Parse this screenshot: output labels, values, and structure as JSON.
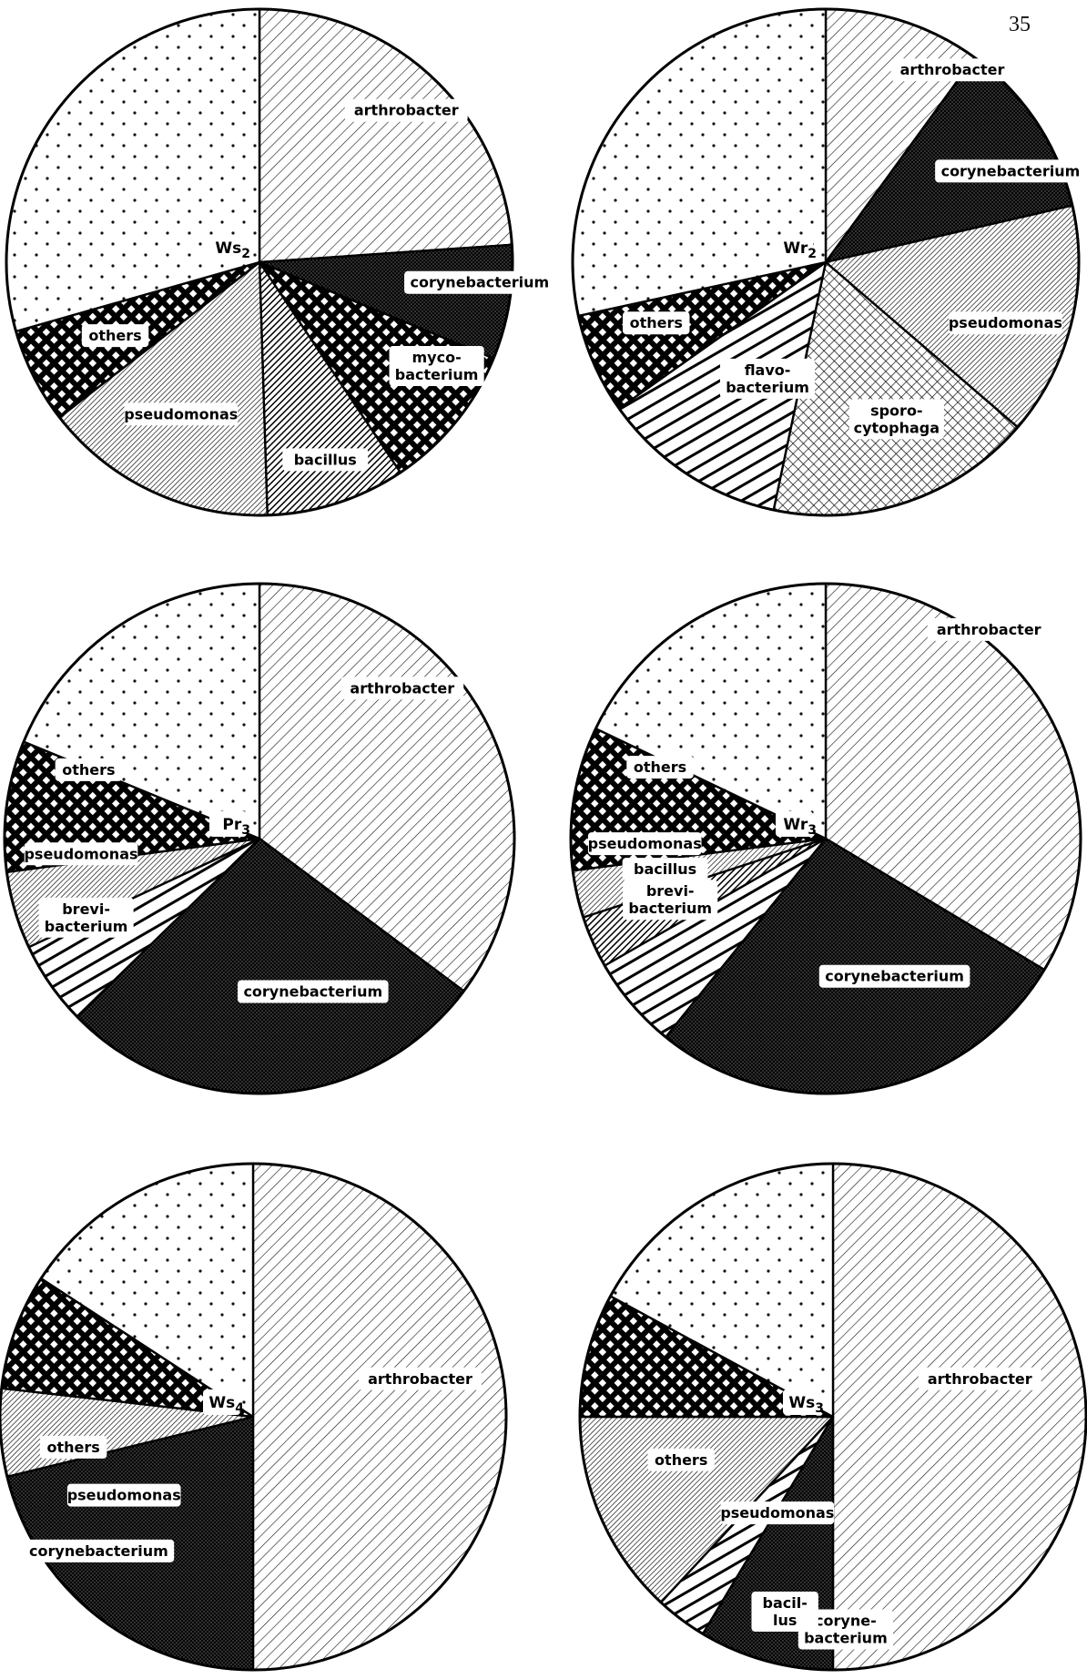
{
  "page_number": "35",
  "chart_data": [
    {
      "type": "pie",
      "center_label": "Ws2",
      "units": "percent (estimated)",
      "slices": [
        {
          "label": "arthrobacter",
          "value": 23.9,
          "pattern": "diag-fine"
        },
        {
          "label": "corynebacterium",
          "value": 7.3,
          "pattern": "crosshatch-dark"
        },
        {
          "label": "myco-bacterium",
          "value": 9.4,
          "pattern": "grid-bold"
        },
        {
          "label": "bacillus",
          "value": 8.9,
          "pattern": "diag-dark"
        },
        {
          "label": "pseudomonas",
          "value": 15.0,
          "pattern": "diag-dense"
        },
        {
          "label": "others",
          "value": 6.1,
          "pattern": "grid-bold"
        },
        {
          "label": "",
          "value": 29.4,
          "pattern": "dots"
        }
      ]
    },
    {
      "type": "pie",
      "center_label": "Wr2",
      "units": "percent (estimated)",
      "slices": [
        {
          "label": "arthrobacter",
          "value": 10.0,
          "pattern": "diag-fine"
        },
        {
          "label": "corynebacterium",
          "value": 11.4,
          "pattern": "crosshatch-dark"
        },
        {
          "label": "pseudomonas",
          "value": 14.9,
          "pattern": "diag-dense"
        },
        {
          "label": "sporo-cytophaga",
          "value": 17.0,
          "pattern": "grid-fine"
        },
        {
          "label": "flavo-bacterium",
          "value": 11.9,
          "pattern": "diag-bold"
        },
        {
          "label": "others",
          "value": 6.4,
          "pattern": "grid-bold"
        },
        {
          "label": "",
          "value": 28.4,
          "pattern": "dots"
        }
      ]
    },
    {
      "type": "pie",
      "center_label": "Pr3",
      "units": "percent (estimated)",
      "slices": [
        {
          "label": "arthrobacter",
          "value": 35.2,
          "pattern": "diag-fine"
        },
        {
          "label": "corynebacterium",
          "value": 27.5,
          "pattern": "crosshatch-dark"
        },
        {
          "label": "brevi-bacterium",
          "value": 5.3,
          "pattern": "diag-bold"
        },
        {
          "label": "pseudomonas",
          "value": 4.9,
          "pattern": "diag-dense"
        },
        {
          "label": "others",
          "value": 8.3,
          "pattern": "grid-bold"
        },
        {
          "label": "",
          "value": 18.8,
          "pattern": "dots"
        }
      ]
    },
    {
      "type": "pie",
      "center_label": "Wr3",
      "units": "percent (estimated)",
      "slices": [
        {
          "label": "arthrobacter",
          "value": 33.6,
          "pattern": "diag-fine"
        },
        {
          "label": "corynebacterium",
          "value": 27.2,
          "pattern": "crosshatch-dark"
        },
        {
          "label": "brevi-bacterium",
          "value": 5.9,
          "pattern": "diag-bold"
        },
        {
          "label": "bacillus",
          "value": 3.3,
          "pattern": "diag-dark"
        },
        {
          "label": "pseudomonas",
          "value": 3.0,
          "pattern": "diag-dense"
        },
        {
          "label": "others",
          "value": 9.1,
          "pattern": "grid-bold"
        },
        {
          "label": "",
          "value": 17.9,
          "pattern": "dots"
        }
      ]
    },
    {
      "type": "pie",
      "center_label": "Ws4",
      "units": "percent (estimated)",
      "slices": [
        {
          "label": "arthrobacter",
          "value": 50.0,
          "pattern": "diag-fine"
        },
        {
          "label": "corynebacterium",
          "value": 21.2,
          "pattern": "crosshatch-dark"
        },
        {
          "label": "pseudomonas",
          "value": 5.6,
          "pattern": "diag-dense"
        },
        {
          "label": "others",
          "value": 7.4,
          "pattern": "grid-bold"
        },
        {
          "label": "",
          "value": 15.8,
          "pattern": "dots"
        }
      ]
    },
    {
      "type": "pie",
      "center_label": "Ws3",
      "units": "percent (estimated)",
      "slices": [
        {
          "label": "arthrobacter",
          "value": 50.0,
          "pattern": "diag-fine"
        },
        {
          "label": "coryne-bacterium",
          "value": 8.6,
          "pattern": "crosshatch-dark"
        },
        {
          "label": "bacil-lus",
          "value": 3.3,
          "pattern": "diag-bold"
        },
        {
          "label": "pseudomonas",
          "value": 13.1,
          "pattern": "diag-dense"
        },
        {
          "label": "others",
          "value": 7.9,
          "pattern": "grid-bold"
        },
        {
          "label": "",
          "value": 17.1,
          "pattern": "dots"
        }
      ]
    }
  ]
}
